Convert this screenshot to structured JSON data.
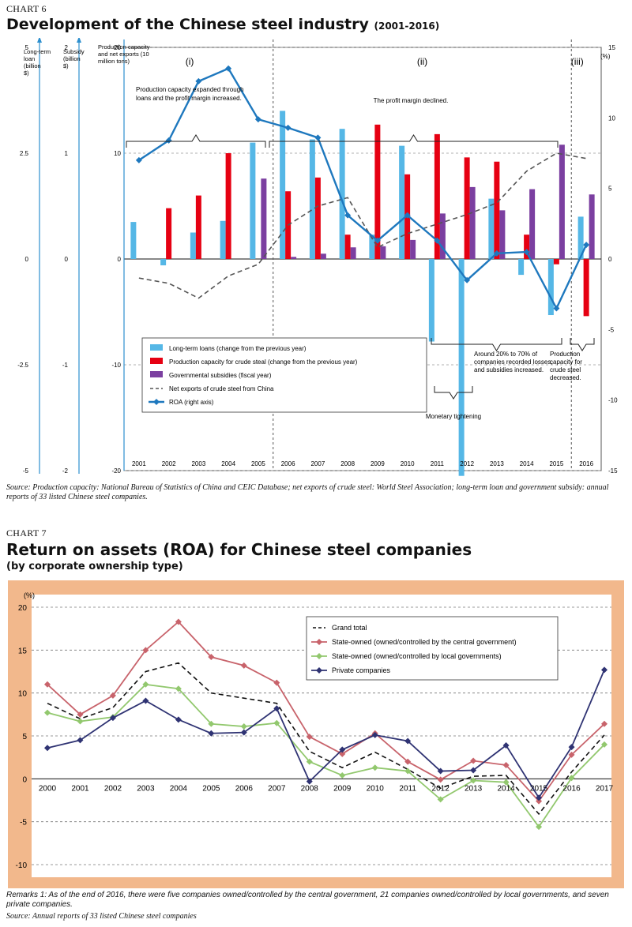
{
  "chart6": {
    "label": "CHART 6",
    "title": "Development of the Chinese steel industry",
    "subtitle": "(2001-2016)",
    "source": "Source: Production capacity: National Bureau of Statistics of China and CEIC Database; net exports of crude steel: World Steel Association; long-term loan and government subsidy: annual reports of 33 listed Chinese steel companies."
  },
  "chart7": {
    "label": "CHART 7",
    "title": "Return on assets (ROA) for Chinese steel companies",
    "subtitle": "(by corporate ownership type)",
    "remarks": "Remarks 1: As of the end of 2016, there were five companies owned/controlled by the central government, 21 companies owned/controlled by local governments, and seven private companies.",
    "source": "Source: Annual reports of 33 listed Chinese steel companies"
  },
  "chart_data": [
    {
      "type": "bar",
      "title": "Development of the Chinese steel industry",
      "subtitle": "(2001-2016)",
      "categories": [
        "2001",
        "2002",
        "2003",
        "2004",
        "2005",
        "2006",
        "2007",
        "2008",
        "2009",
        "2010",
        "2011",
        "2012",
        "2013",
        "2014",
        "2015",
        "2016"
      ],
      "axes": {
        "loan": {
          "label": "Long-term loan (billion $)",
          "ticks": [
            "5",
            "2.5",
            "0",
            "-2.5",
            "-5"
          ],
          "range": [
            -5,
            5
          ]
        },
        "subsidy": {
          "label": "Subsidy (billion $)",
          "ticks": [
            "2",
            "1",
            "0",
            "-1",
            "-2"
          ],
          "range": [
            -2,
            2
          ]
        },
        "main": {
          "label": "Production capacity and net exports (10 million tons)",
          "ticks": [
            "20",
            "10",
            "0",
            "-10",
            "-20"
          ],
          "range": [
            -20,
            20
          ]
        },
        "right": {
          "label": "(%)",
          "ticks": [
            "15",
            "10",
            "5",
            "0",
            "-5",
            "-10",
            "-15"
          ],
          "range": [
            -15,
            15
          ]
        }
      },
      "periods": [
        "(i)",
        "(ii)",
        "(iii)"
      ],
      "annotations": {
        "period1": "Production capacity expanded through loans and the profit margin increased.",
        "period2": "The profit margin declined.",
        "monetary": "Monetary tightening",
        "losses": "Around 20% to 70% of companies recorded losses, and subsidies increased.",
        "decreased": "Production capacity for crude steel decreased."
      },
      "series": [
        {
          "name": "Long-term loans (change from the previous year)",
          "color": "#55b7e6",
          "values": [
            3.5,
            -0.6,
            2.5,
            3.6,
            11,
            14,
            11.3,
            12.3,
            2.3,
            10.7,
            -7.8,
            -20.5,
            5.7,
            -1.5,
            -5.3,
            4
          ]
        },
        {
          "name": "Production capacity for crude steal (change from the previous year)",
          "color": "#e60012",
          "values": [
            null,
            4.8,
            6,
            10,
            null,
            6.4,
            7.7,
            2.3,
            12.7,
            8,
            11.8,
            9.6,
            9.2,
            2.3,
            -0.5,
            -5.4
          ]
        },
        {
          "name": "Governmental subsidies (fiscal year)",
          "color": "#7b3fa0",
          "values": [
            null,
            null,
            null,
            null,
            7.6,
            0.2,
            0.5,
            1.1,
            1.2,
            1.8,
            4.3,
            6.8,
            4.6,
            6.6,
            10.8,
            6.1
          ]
        },
        {
          "name": "Net exports of crude steel from China",
          "color": "#555555",
          "values": [
            -1.8,
            -2.3,
            -3.7,
            -1.6,
            -0.5,
            3.2,
            5,
            5.8,
            1.1,
            2.4,
            3.3,
            4.2,
            5.3,
            8.3,
            10,
            9.5
          ]
        },
        {
          "name": "ROA (right axis)",
          "color": "#1e78be",
          "values": [
            7,
            8.4,
            12.6,
            13.5,
            9.9,
            9.3,
            8.6,
            3.1,
            1.3,
            3.1,
            1.3,
            -1.5,
            0.4,
            0.5,
            -3.5,
            1
          ]
        }
      ]
    },
    {
      "type": "line",
      "title": "Return on assets (ROA) for Chinese steel companies",
      "subtitle": "(by corporate ownership type)",
      "ylabel": "(%)",
      "ylim": [
        -10,
        20
      ],
      "yticks": [
        "20",
        "15",
        "10",
        "5",
        "0",
        "-5",
        "-10"
      ],
      "categories": [
        "2000",
        "2001",
        "2002",
        "2003",
        "2004",
        "2005",
        "2006",
        "2007",
        "2008",
        "2009",
        "2010",
        "2011",
        "2012",
        "2013",
        "2014",
        "2015",
        "2016",
        "2017"
      ],
      "series": [
        {
          "name": "Grand total",
          "color": "#111111",
          "values": [
            8.8,
            7,
            8.3,
            12.5,
            13.5,
            10,
            9.4,
            8.8,
            3.2,
            1.3,
            3.1,
            1.1,
            -1.1,
            0.3,
            0.4,
            -4.1,
            0.8,
            5.1
          ]
        },
        {
          "name": "State-owned (owned/controlled by the central government)",
          "color": "#c8636b",
          "values": [
            11,
            7.5,
            9.7,
            15,
            18.3,
            14.2,
            13.2,
            11.2,
            4.9,
            2.9,
            5.3,
            2,
            -0.1,
            2.1,
            1.6,
            -2.6,
            2.8,
            6.4
          ]
        },
        {
          "name": "State-owned (owned/controlled by local governments)",
          "color": "#92c86e",
          "values": [
            7.7,
            6.7,
            7.2,
            11,
            10.5,
            6.4,
            6.1,
            6.5,
            2,
            0.4,
            1.3,
            0.9,
            -2.4,
            -0.2,
            -0.4,
            -5.6,
            0.1,
            4
          ]
        },
        {
          "name": "Private companies",
          "color": "#2f3373",
          "values": [
            3.6,
            4.5,
            7.1,
            9.1,
            6.9,
            5.3,
            5.4,
            8.2,
            -0.3,
            3.4,
            5.1,
            4.4,
            0.9,
            1,
            3.9,
            -2.2,
            3.7,
            12.7
          ]
        }
      ]
    }
  ]
}
